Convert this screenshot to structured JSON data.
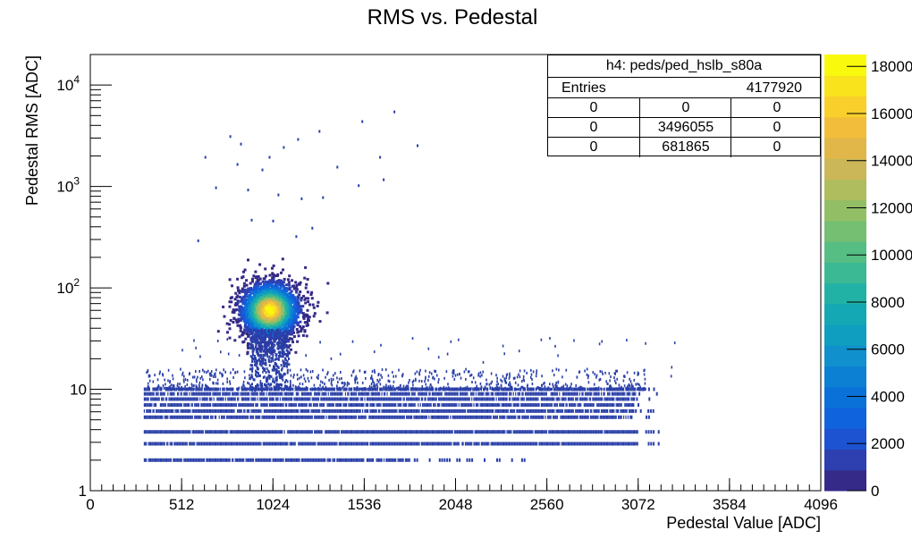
{
  "chart_data": {
    "type": "heatmap",
    "title": "RMS vs. Pedestal",
    "xlabel": "Pedestal Value [ADC]",
    "ylabel": "Pedestal RMS [ADC]",
    "xlim": [
      0,
      4096
    ],
    "ylim": [
      1,
      20000
    ],
    "y_scale": "log",
    "x_ticks": [
      "0",
      "512",
      "1024",
      "1536",
      "2048",
      "2560",
      "3072",
      "3584",
      "4096"
    ],
    "y_ticks": [
      {
        "value": 1,
        "base": "1",
        "exp": ""
      },
      {
        "value": 10,
        "base": "10",
        "exp": ""
      },
      {
        "value": 100,
        "base": "10",
        "exp": "2"
      },
      {
        "value": 1000,
        "base": "10",
        "exp": "3"
      },
      {
        "value": 10000,
        "base": "10",
        "exp": "4"
      }
    ],
    "colorbar": {
      "min": 0,
      "max": 18500,
      "ticks": [
        "0",
        "2000",
        "4000",
        "6000",
        "8000",
        "10000",
        "12000",
        "14000",
        "16000",
        "18000"
      ],
      "palette": [
        "#352a87",
        "#2e3fb0",
        "#1d53d0",
        "#0f63dc",
        "#0a71d8",
        "#0c80d2",
        "#1090cc",
        "#0f9dc0",
        "#14a8b4",
        "#22b2a5",
        "#3bb994",
        "#56bd83",
        "#74bf72",
        "#92bf66",
        "#b0bd5e",
        "#cbb758",
        "#e1b74a",
        "#f2bd3a",
        "#f9cf2c",
        "#f8e31c",
        "#f9f90e"
      ]
    },
    "bands": [
      {
        "rms": 2.0,
        "x_start": 300,
        "x_end": 1800,
        "x_tail_end": 2450,
        "density": 0.9
      },
      {
        "rms": 2.9,
        "x_start": 300,
        "x_end": 3070,
        "density": 0.95
      },
      {
        "rms": 3.8,
        "x_start": 300,
        "x_end": 3070,
        "density": 0.95
      },
      {
        "rms": 5.3,
        "x_start": 300,
        "x_end": 3030,
        "density": 0.9
      },
      {
        "rms": 6.1,
        "x_start": 300,
        "x_end": 3040,
        "density": 0.9
      },
      {
        "rms": 7.0,
        "x_start": 300,
        "x_end": 3040,
        "density": 0.9
      },
      {
        "rms": 8.0,
        "x_start": 300,
        "x_end": 3060,
        "density": 0.9
      },
      {
        "rms": 9.0,
        "x_start": 300,
        "x_end": 3060,
        "density": 0.85
      },
      {
        "rms": 10.0,
        "x_start": 300,
        "x_end": 3100,
        "density": 0.8
      }
    ],
    "cluster": {
      "x_center": 1000,
      "x_sigma": 85,
      "rms_center": 62,
      "rms_log_sigma": 0.14,
      "peak_counts": 18000
    },
    "stats_box": {
      "name": "h4: peds/ped_hslb_s80a",
      "entries_label": "Entries",
      "entries_value": "4177920",
      "grid": [
        [
          "0",
          "0",
          "0"
        ],
        [
          "0",
          "3496055",
          "0"
        ],
        [
          "0",
          "681865",
          "0"
        ]
      ]
    }
  }
}
